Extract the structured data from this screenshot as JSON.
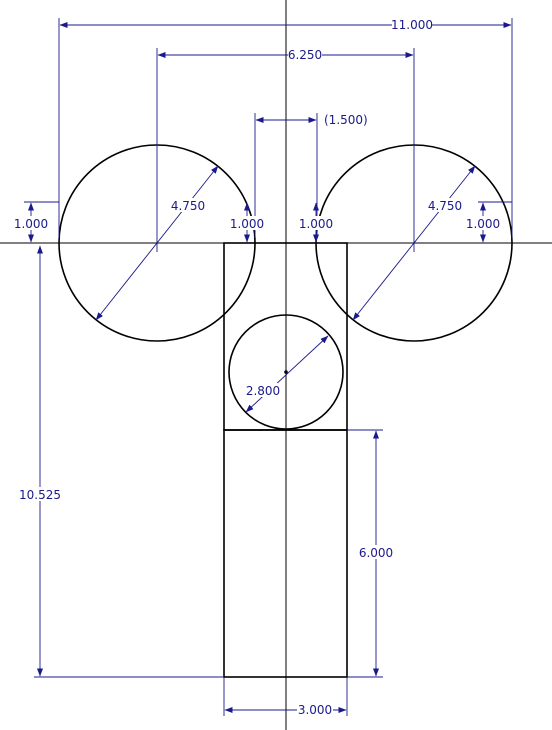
{
  "dimensions": {
    "overall_width": "11.000",
    "circle_spacing": "6.250",
    "center_offset": "(1.500)",
    "left_circle_diameter": "4.750",
    "right_circle_diameter": "4.750",
    "left_circle_rise": "1.000",
    "right_circle_rise": "1.000",
    "inner_left_rise": "1.000",
    "inner_right_rise": "1.000",
    "center_circle_diameter": "2.800",
    "overall_height": "10.525",
    "stem_height": "6.000",
    "stem_width": "3.000"
  }
}
